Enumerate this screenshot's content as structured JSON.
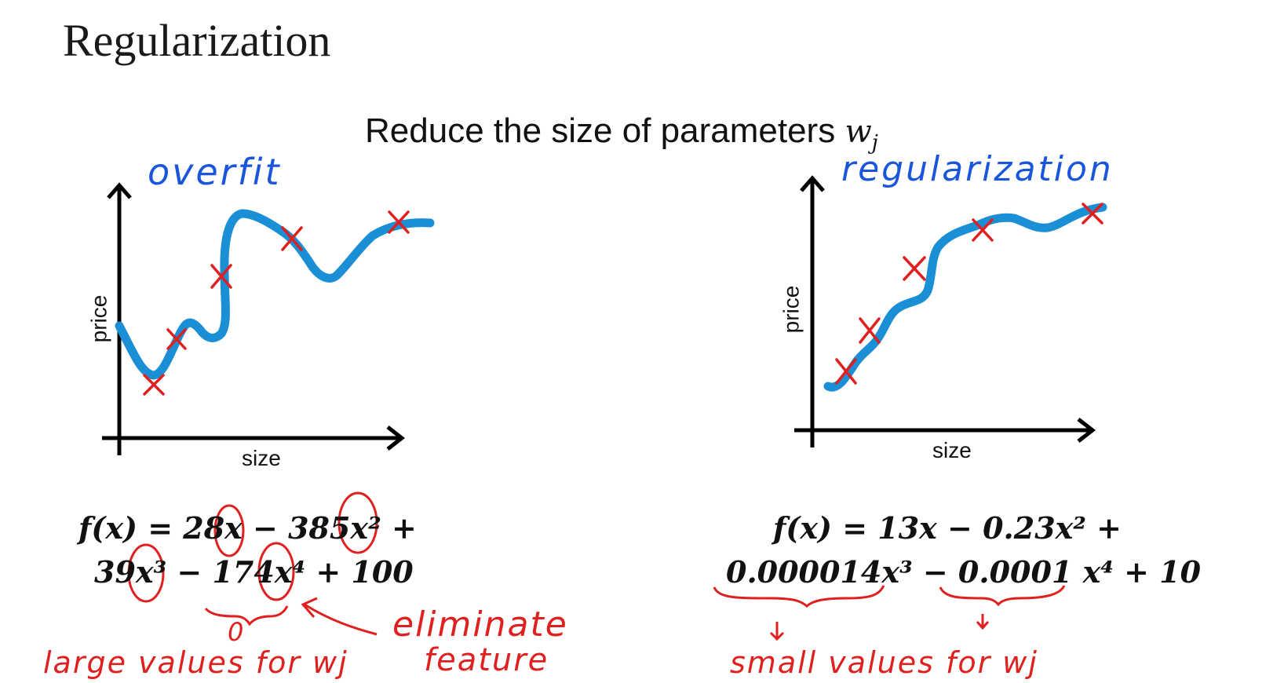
{
  "slide": {
    "title": "Regularization",
    "subtitle_prefix": "Reduce the size of parameters",
    "subtitle_var": "w",
    "subtitle_sub": "j"
  },
  "left_panel": {
    "annotation": "overfit",
    "x_label": "size",
    "y_label": "price",
    "formula_line1": "f(x) = 28x − 385x² +",
    "formula_line2": "39x³ − 174x⁴ + 100",
    "note_zero": "0",
    "note_eliminate": "eliminate",
    "note_feature": "feature",
    "note_large": "large values for wj"
  },
  "right_panel": {
    "annotation": "regularization",
    "x_label": "size",
    "y_label": "price",
    "formula_line1": "f(x) = 13x − 0.23x² +",
    "formula_line2": "0.000014x³ − 0.0001 x⁴ + 10",
    "note_small": "small values for wj"
  },
  "colors": {
    "curve": "#1a8fd6",
    "marker": "#e0201f",
    "handwriting_blue": "#1a56db",
    "handwriting_red": "#e0201f"
  }
}
